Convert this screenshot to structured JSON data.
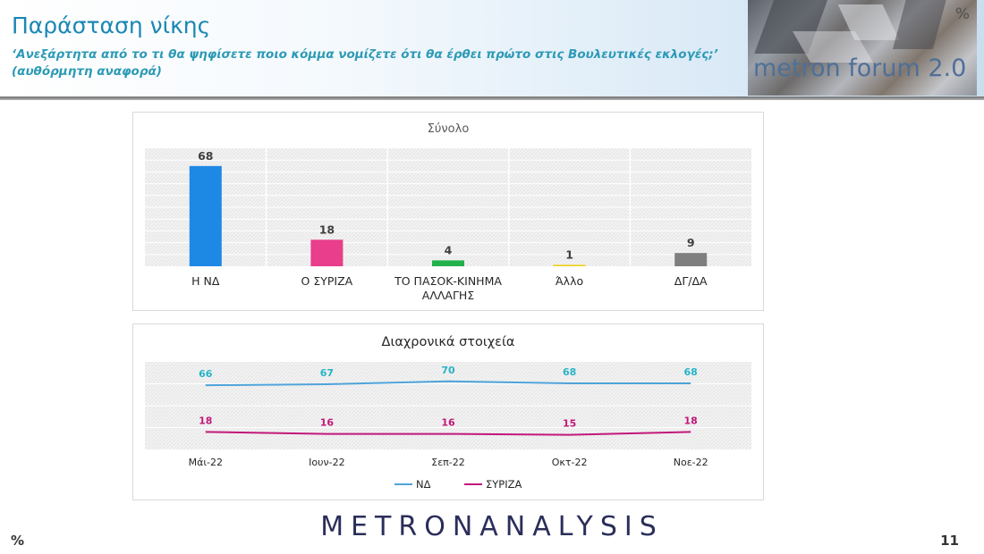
{
  "header": {
    "title": "Παράσταση νίκης",
    "subtitle": "‘Ανεξάρτητα από το τι θα ψηφίσετε ποιο κόμμα νομίζετε ότι θα έρθει πρώτο στις Βουλευτικές εκλογές;’ (αυθόρμητη αναφορά)",
    "logo_text": "metron forum 2.0",
    "logo_pct": "%"
  },
  "footer": {
    "brand": "METRONANALYSIS",
    "percent": "%",
    "page_number": "11"
  },
  "chart_data": [
    {
      "type": "bar",
      "title": "Σύνολο",
      "categories": [
        "Η ΝΔ",
        "Ο ΣΥΡΙΖΑ",
        "ΤΟ ΠΑΣΟΚ-ΚΙΝΗΜΑ ΑΛΛΑΓΗΣ",
        "Άλλο",
        "ΔΓ/ΔΑ"
      ],
      "category_lines": [
        [
          "Η ΝΔ"
        ],
        [
          "Ο ΣΥΡΙΖΑ"
        ],
        [
          "ΤΟ ΠΑΣΟΚ-ΚΙΝΗΜΑ",
          "ΑΛΛΑΓΗΣ"
        ],
        [
          "Άλλο"
        ],
        [
          "ΔΓ/ΔΑ"
        ]
      ],
      "values": [
        68,
        18,
        4,
        1,
        9
      ],
      "colors": [
        "#1e88e5",
        "#e83e8c",
        "#22b14c",
        "#f0d020",
        "#7f7f7f"
      ],
      "ylim": [
        0,
        80
      ],
      "grid": true
    },
    {
      "type": "line",
      "title": "Διαχρονικά στοιχεία",
      "categories": [
        "Μάι-22",
        "Ιουν-22",
        "Σεπ-22",
        "Οκτ-22",
        "Νοε-22"
      ],
      "series": [
        {
          "name": "ΝΔ",
          "values": [
            66,
            67,
            70,
            68,
            68
          ],
          "color": "#4ea3d9",
          "label_color": "#27b3c7"
        },
        {
          "name": "ΣΥΡΙΖΑ",
          "values": [
            18,
            16,
            16,
            15,
            18
          ],
          "color": "#c2187a",
          "label_color": "#c2187a"
        }
      ],
      "ylim": [
        0,
        90
      ],
      "legend": "bottom",
      "grid": true
    }
  ]
}
